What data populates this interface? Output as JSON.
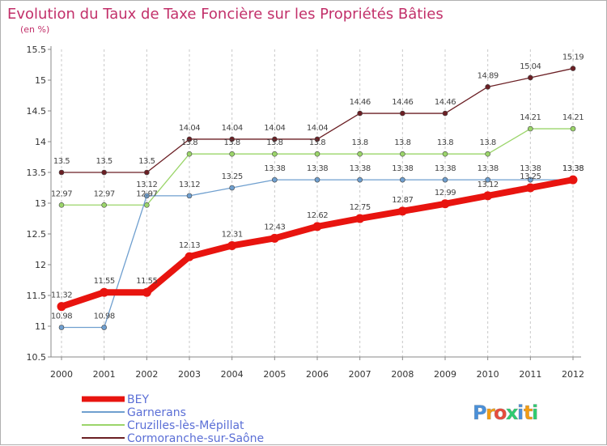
{
  "chart_data": {
    "type": "line",
    "title": "Evolution du Taux de Taxe Foncière sur les Propriétés Bâties",
    "subtitle": "(en %)",
    "x": [
      2000,
      2001,
      2002,
      2003,
      2004,
      2005,
      2006,
      2007,
      2008,
      2009,
      2010,
      2011,
      2012
    ],
    "x_tick_labels": [
      "2000",
      "2001",
      "2002",
      "2003",
      "2004",
      "2005",
      "2006",
      "2007",
      "2008",
      "2009",
      "2010",
      "2011",
      "2012"
    ],
    "ylim": [
      10.5,
      15.5
    ],
    "y_ticks": [
      10.5,
      11,
      11.5,
      12,
      12.5,
      13,
      13.5,
      14,
      14.5,
      15,
      15.5
    ],
    "y_tick_labels": [
      "10.5",
      "11",
      "11.5",
      "12",
      "12.5",
      "13",
      "13.5",
      "14",
      "14.5",
      "15",
      "15.5"
    ],
    "grid": "vertical-dashed",
    "series": [
      {
        "name": "Cormoranche-sur-Saône",
        "color": "#6b1f24",
        "values": [
          13.5,
          13.5,
          13.5,
          14.04,
          14.04,
          14.04,
          14.04,
          14.46,
          14.46,
          14.46,
          14.89,
          15.04,
          15.19
        ],
        "labels": [
          "13.5",
          "13.5",
          "13.5",
          "14.04",
          "14.04",
          "14.04",
          "14.04",
          "14.46",
          "14.46",
          "14.46",
          "14.89",
          "15.04",
          "15.19"
        ]
      },
      {
        "name": "Cruzilles-lès-Mépillat",
        "color": "#9bd56a",
        "values": [
          12.97,
          12.97,
          12.97,
          13.8,
          13.8,
          13.8,
          13.8,
          13.8,
          13.8,
          13.8,
          13.8,
          14.21,
          14.21
        ],
        "labels": [
          "12.97",
          "12.97",
          "12.97",
          "13.8",
          "13.8",
          "13.8",
          "13.8",
          "13.8",
          "13.8",
          "13.8",
          "13.8",
          "14.21",
          "14.21"
        ]
      },
      {
        "name": "Garnerans",
        "color": "#6f9fcf",
        "values": [
          10.98,
          10.98,
          13.12,
          13.12,
          13.25,
          13.38,
          13.38,
          13.38,
          13.38,
          13.38,
          13.38,
          13.38,
          13.38
        ],
        "labels": [
          "10.98",
          "10.98",
          "13.12",
          "13.12",
          "13.25",
          "13.38",
          "13.38",
          "13.38",
          "13.38",
          "13.38",
          "13.38",
          "13.38",
          "13.38"
        ]
      },
      {
        "name": "BEY",
        "color": "#e8140f",
        "values": [
          11.32,
          11.55,
          11.55,
          12.13,
          12.31,
          12.43,
          12.62,
          12.75,
          12.87,
          12.99,
          13.12,
          13.25,
          13.38
        ],
        "labels": [
          "11.32",
          "11.55",
          "11.55",
          "12.13",
          "12.31",
          "12.43",
          "12.62",
          "12.75",
          "12.87",
          "12.99",
          "13.12",
          "13.25",
          "13.38"
        ]
      }
    ],
    "legend": [
      "BEY",
      "Garnerans",
      "Cruzilles-lès-Mépillat",
      "Cormoranche-sur-Saône"
    ],
    "legend_position": "bottom-left"
  },
  "branding": {
    "logo_text": "Proxiti",
    "logo_letters": [
      "P",
      "r",
      "o",
      "x",
      "i",
      "t",
      "i"
    ],
    "logo_colors": [
      "#4a90d9",
      "#f39c12",
      "#e74c3c",
      "#2ecc71",
      "#4a90d9",
      "#f39c12",
      "#2ecc71"
    ]
  }
}
